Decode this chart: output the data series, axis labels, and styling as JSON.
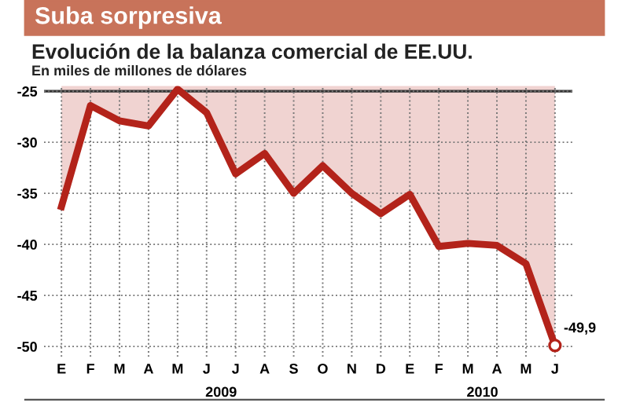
{
  "chart_data": {
    "type": "area",
    "title": "Suba sorpresiva",
    "subtitle": "Evolución de la balanza comercial de EE.UU.",
    "ylabel": "En miles de millones de dólares",
    "categories": [
      "E",
      "F",
      "M",
      "A",
      "M",
      "J",
      "J",
      "A",
      "S",
      "O",
      "N",
      "D",
      "E",
      "F",
      "M",
      "A",
      "M",
      "J"
    ],
    "series": [
      {
        "color": "#b3231a",
        "values": [
          -36.3,
          -26.4,
          -27.9,
          -28.4,
          -24.8,
          -27.1,
          -33.1,
          -31.1,
          -35.0,
          -32.3,
          -35.0,
          -37.0,
          -35.1,
          -40.2,
          -39.9,
          -40.1,
          -41.9,
          -49.9
        ],
        "value_labels": [
          null,
          null,
          null,
          null,
          null,
          null,
          null,
          null,
          null,
          null,
          null,
          null,
          null,
          null,
          null,
          null,
          null,
          "-49,9"
        ]
      }
    ],
    "annotations": [
      "2009",
      "2010"
    ],
    "ylim": [
      -51,
      -24.5
    ],
    "yticks": [
      -50,
      -45,
      -40,
      -35,
      -30,
      -25
    ],
    "ref_lines": [
      {
        "axis": "y",
        "value": -25,
        "color": "#333333"
      }
    ],
    "grid": true,
    "line_style": "solid"
  }
}
